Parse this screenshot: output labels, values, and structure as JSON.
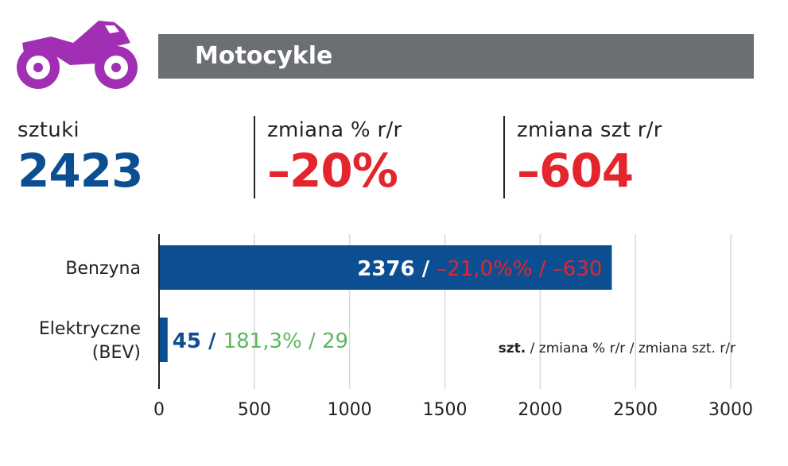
{
  "header": {
    "title": "Motocykle",
    "icon": "motorcycle-icon",
    "icon_color": "#a12fb4"
  },
  "kpis": [
    {
      "label": "sztuki",
      "value": "2423",
      "color": "#0b4f92"
    },
    {
      "label": "zmiana % r/r",
      "value": "–20%",
      "color": "#e3262d"
    },
    {
      "label": "zmiana szt r/r",
      "value": "–604",
      "color": "#e3262d"
    }
  ],
  "chart_data": {
    "type": "bar",
    "orientation": "horizontal",
    "categories": [
      "Benzyna",
      "Elektryczne (BEV)"
    ],
    "category_lines": [
      [
        "Benzyna"
      ],
      [
        "Elektryczne",
        "(BEV)"
      ]
    ],
    "values": [
      2376,
      45
    ],
    "bar_color": "#0b4f92",
    "data_labels": [
      {
        "count": "2376 /",
        "change": "–21,0%% / –630",
        "change_color": "#e3262d"
      },
      {
        "count": "45 /",
        "change": "181,3% / 29",
        "change_color": "#5cb85c"
      }
    ],
    "xlim": [
      0,
      3000
    ],
    "xticks": [
      0,
      500,
      1000,
      1500,
      2000,
      2500,
      3000
    ],
    "grid": true,
    "legend_note": {
      "bold": "szt.",
      "rest": " / zmiana % r/r / zmiana szt. r/r"
    }
  }
}
